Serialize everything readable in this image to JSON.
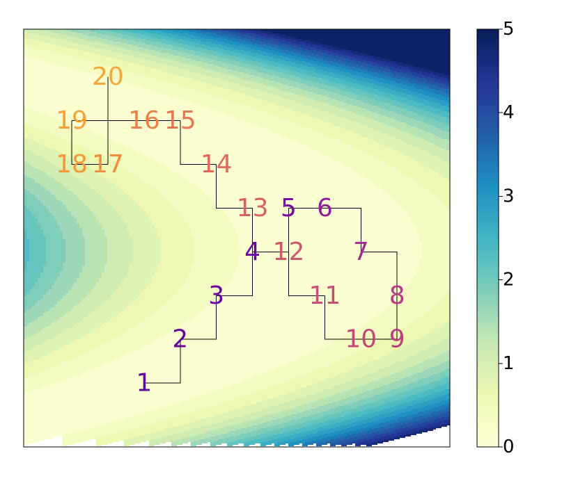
{
  "chart_data": {
    "type": "contour-path",
    "labels": [
      "1",
      "2",
      "3",
      "4",
      "5",
      "6",
      "7",
      "8",
      "9",
      "10",
      "11",
      "12",
      "13",
      "14",
      "15",
      "16",
      "17",
      "18",
      "19",
      "20"
    ],
    "x": [
      3,
      4,
      5,
      6,
      7,
      8,
      9,
      10,
      10,
      9,
      8,
      7,
      6,
      5,
      4,
      3,
      2,
      1,
      1,
      2
    ],
    "y": [
      1,
      2,
      3,
      4,
      5,
      5,
      4,
      3,
      2,
      2,
      3,
      4,
      5,
      6,
      7,
      7,
      6,
      6,
      7,
      8
    ],
    "colors": [
      "#5b0a9d",
      "#62059f",
      "#6a00a8",
      "#6f00a8",
      "#7a0aa6",
      "#8e1a9c",
      "#a32a8f",
      "#b43a84",
      "#b93e80",
      "#c24878",
      "#c84e73",
      "#d0566b",
      "#d85f62",
      "#e0695a",
      "#e67551",
      "#ec8047",
      "#f08c3e",
      "#f29838",
      "#f3a037",
      "#f5a83a"
    ],
    "xlim": [
      -0.33,
      11.46
    ],
    "ylim": [
      -0.46,
      9.09
    ],
    "colorbar": {
      "lim": [
        0,
        5
      ],
      "ticks": [
        0,
        1,
        2,
        3,
        4,
        5
      ]
    }
  }
}
